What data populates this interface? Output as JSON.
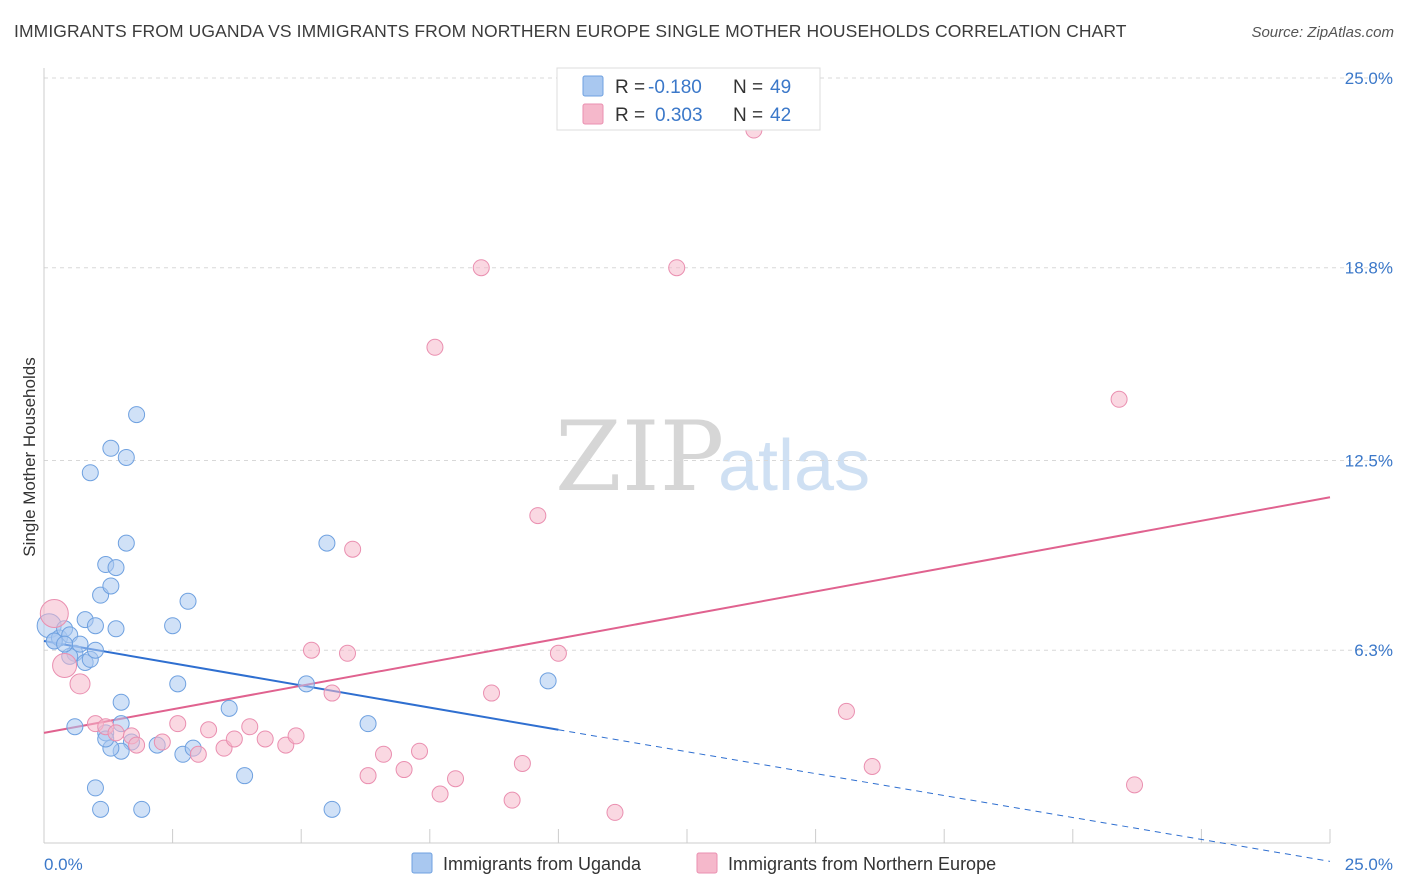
{
  "header": {
    "title": "IMMIGRANTS FROM UGANDA VS IMMIGRANTS FROM NORTHERN EUROPE SINGLE MOTHER HOUSEHOLDS CORRELATION CHART",
    "source": "Source: ZipAtlas.com"
  },
  "watermark": {
    "zip": "ZIP",
    "atlas": "atlas"
  },
  "legend": {
    "r_label": "R =",
    "n_label": "N =",
    "rows": [
      {
        "r": "-0.180",
        "n": "49",
        "color": "#a9c8f0"
      },
      {
        "r": "0.303",
        "n": "42",
        "color": "#f5b8cb"
      }
    ]
  },
  "chart_data": {
    "type": "scatter",
    "title": "IMMIGRANTS FROM UGANDA VS IMMIGRANTS FROM NORTHERN EUROPE SINGLE MOTHER HOUSEHOLDS CORRELATION CHART",
    "xlabel": "",
    "ylabel": "Single Mother Households",
    "xlim": [
      0,
      25
    ],
    "ylim": [
      0,
      25
    ],
    "x_tick_labels": [
      "0.0%",
      "25.0%"
    ],
    "y_ticks": [
      6.3,
      12.5,
      18.8,
      25.0
    ],
    "y_tick_labels": [
      "6.3%",
      "12.5%",
      "18.8%",
      "25.0%"
    ],
    "grid": true,
    "legend_position": "top-center",
    "series": [
      {
        "name": "Immigrants from Uganda",
        "color": "#a9c8f0",
        "stroke": "#6fa1e0",
        "trend": {
          "x0": 0,
          "y0": 6.6,
          "x1": 10,
          "y1": 3.7,
          "dashed_to_x": 25,
          "dashed_to_y": -0.6,
          "color": "#2f6fd0"
        },
        "points": [
          [
            0.1,
            7.1,
            12
          ],
          [
            0.2,
            6.6,
            8
          ],
          [
            0.3,
            6.7,
            8
          ],
          [
            0.4,
            7.0,
            8
          ],
          [
            0.5,
            6.8,
            8
          ],
          [
            0.6,
            6.2,
            8
          ],
          [
            0.8,
            5.9,
            8
          ],
          [
            0.7,
            6.5,
            8
          ],
          [
            0.9,
            6.0,
            8
          ],
          [
            1.0,
            6.3,
            8
          ],
          [
            0.6,
            3.8,
            8
          ],
          [
            0.8,
            7.3,
            8
          ],
          [
            1.0,
            7.1,
            8
          ],
          [
            1.1,
            8.1,
            8
          ],
          [
            1.3,
            8.4,
            8
          ],
          [
            1.2,
            9.1,
            8
          ],
          [
            1.4,
            9.0,
            8
          ],
          [
            1.4,
            7.0,
            8
          ],
          [
            1.6,
            9.8,
            8
          ],
          [
            1.5,
            4.6,
            8
          ],
          [
            1.7,
            3.3,
            8
          ],
          [
            1.5,
            3.0,
            8
          ],
          [
            1.3,
            3.1,
            8
          ],
          [
            1.2,
            3.6,
            8
          ],
          [
            1.0,
            1.8,
            8
          ],
          [
            1.1,
            1.1,
            8
          ],
          [
            1.9,
            1.1,
            8
          ],
          [
            1.8,
            14.0,
            8
          ],
          [
            1.3,
            12.9,
            8
          ],
          [
            1.6,
            12.6,
            8
          ],
          [
            0.9,
            12.1,
            8
          ],
          [
            2.5,
            7.1,
            8
          ],
          [
            2.6,
            5.2,
            8
          ],
          [
            2.8,
            7.9,
            8
          ],
          [
            2.7,
            2.9,
            8
          ],
          [
            2.9,
            3.1,
            8
          ],
          [
            3.6,
            4.4,
            8
          ],
          [
            3.9,
            2.2,
            8
          ],
          [
            5.1,
            5.2,
            8
          ],
          [
            5.5,
            9.8,
            8
          ],
          [
            5.6,
            1.1,
            8
          ],
          [
            6.3,
            3.9,
            8
          ],
          [
            9.8,
            5.3,
            8
          ],
          [
            0.2,
            6.6,
            8
          ],
          [
            1.2,
            3.4,
            8
          ],
          [
            1.5,
            3.9,
            8
          ],
          [
            2.2,
            3.2,
            8
          ],
          [
            0.5,
            6.1,
            8
          ],
          [
            0.4,
            6.5,
            8
          ]
        ]
      },
      {
        "name": "Immigrants from Northern Europe",
        "color": "#f5b8cb",
        "stroke": "#ea8fb0",
        "trend": {
          "x0": 0,
          "y0": 3.6,
          "x1": 25,
          "y1": 11.3,
          "color": "#e0628f"
        },
        "points": [
          [
            0.2,
            7.5,
            14
          ],
          [
            0.4,
            5.8,
            12
          ],
          [
            0.7,
            5.2,
            10
          ],
          [
            1.0,
            3.9,
            8
          ],
          [
            1.2,
            3.8,
            8
          ],
          [
            1.4,
            3.6,
            8
          ],
          [
            1.7,
            3.5,
            8
          ],
          [
            1.8,
            3.2,
            8
          ],
          [
            2.3,
            3.3,
            8
          ],
          [
            2.6,
            3.9,
            8
          ],
          [
            3.0,
            2.9,
            8
          ],
          [
            3.2,
            3.7,
            8
          ],
          [
            3.5,
            3.1,
            8
          ],
          [
            3.7,
            3.4,
            8
          ],
          [
            4.0,
            3.8,
            8
          ],
          [
            4.3,
            3.4,
            8
          ],
          [
            4.7,
            3.2,
            8
          ],
          [
            4.9,
            3.5,
            8
          ],
          [
            5.2,
            6.3,
            8
          ],
          [
            5.6,
            4.9,
            8
          ],
          [
            5.9,
            6.2,
            8
          ],
          [
            6.0,
            9.6,
            8
          ],
          [
            6.3,
            2.2,
            8
          ],
          [
            6.6,
            2.9,
            8
          ],
          [
            7.0,
            2.4,
            8
          ],
          [
            7.3,
            3.0,
            8
          ],
          [
            7.7,
            1.6,
            8
          ],
          [
            8.0,
            2.1,
            8
          ],
          [
            8.5,
            18.8,
            8
          ],
          [
            7.6,
            16.2,
            8
          ],
          [
            8.7,
            4.9,
            8
          ],
          [
            9.3,
            2.6,
            8
          ],
          [
            9.1,
            1.4,
            8
          ],
          [
            9.6,
            10.7,
            8
          ],
          [
            10.0,
            6.2,
            8
          ],
          [
            11.1,
            1.0,
            8
          ],
          [
            12.3,
            18.8,
            8
          ],
          [
            13.8,
            23.3,
            8
          ],
          [
            15.6,
            4.3,
            8
          ],
          [
            16.1,
            2.5,
            8
          ],
          [
            20.9,
            14.5,
            8
          ],
          [
            21.2,
            1.9,
            8
          ]
        ]
      }
    ]
  }
}
